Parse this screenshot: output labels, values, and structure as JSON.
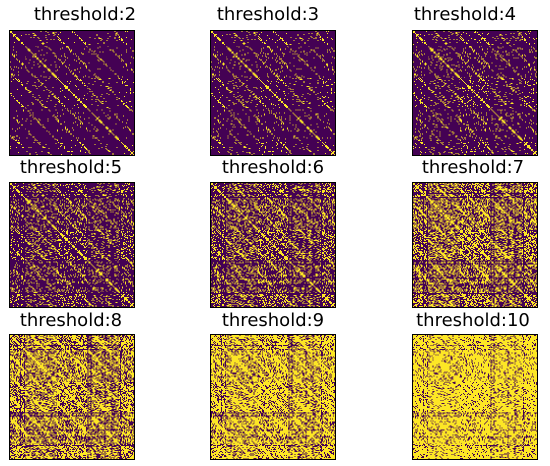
{
  "chart_data": [
    {
      "type": "heatmap",
      "title": "threshold:2",
      "threshold": 2,
      "fill_fraction": 0.03
    },
    {
      "type": "heatmap",
      "title": "threshold:3",
      "threshold": 3,
      "fill_fraction": 0.05
    },
    {
      "type": "heatmap",
      "title": "threshold:4",
      "threshold": 4,
      "fill_fraction": 0.08
    },
    {
      "type": "heatmap",
      "title": "threshold:5",
      "threshold": 5,
      "fill_fraction": 0.18
    },
    {
      "type": "heatmap",
      "title": "threshold:6",
      "threshold": 6,
      "fill_fraction": 0.28
    },
    {
      "type": "heatmap",
      "title": "threshold:7",
      "threshold": 7,
      "fill_fraction": 0.42
    },
    {
      "type": "heatmap",
      "title": "threshold:8",
      "threshold": 8,
      "fill_fraction": 0.55
    },
    {
      "type": "heatmap",
      "title": "threshold:9",
      "threshold": 9,
      "fill_fraction": 0.68
    },
    {
      "type": "heatmap",
      "title": "threshold:10",
      "threshold": 10,
      "fill_fraction": 0.8
    }
  ],
  "colors": {
    "background": "#440154",
    "foreground": "#fde725"
  }
}
